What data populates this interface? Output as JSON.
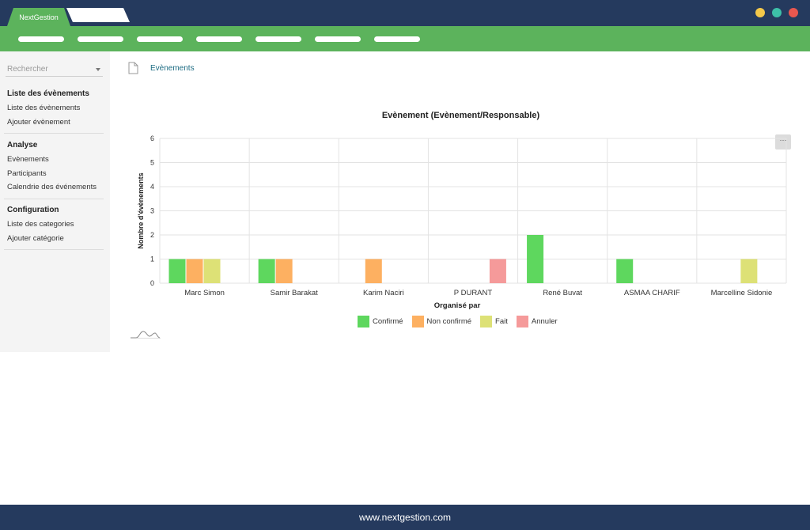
{
  "app": {
    "tab_label": "NextGestion"
  },
  "window_controls": {
    "colors": [
      "#f4c84a",
      "#3dc0a8",
      "#e9574f"
    ]
  },
  "navbar": {
    "pill_count": 7
  },
  "sidebar": {
    "search_placeholder": "Rechercher",
    "sections": [
      {
        "heading": "Liste des évènements",
        "items": [
          "Liste des évènements",
          "Ajouter évènement"
        ]
      },
      {
        "heading": "Analyse",
        "items": [
          "Evènements",
          "Participants",
          "Calendrie des événements"
        ]
      },
      {
        "heading": "Configuration",
        "items": [
          "Liste des categories",
          "Ajouter catégorie"
        ]
      }
    ]
  },
  "breadcrumb": {
    "label": "Evènements",
    "icon": "document-icon"
  },
  "chart_menu": {
    "label": "···"
  },
  "chart_data": {
    "type": "bar",
    "title": "Evènement (Evènement/Responsable)",
    "xlabel": "Organisé par",
    "ylabel": "Nombre d'évènements",
    "ylim": [
      0,
      6
    ],
    "yticks": [
      0,
      1,
      2,
      3,
      4,
      5,
      6
    ],
    "grid": true,
    "legend_position": "bottom",
    "categories": [
      "Marc Simon",
      "Samir Barakat",
      "Karim Naciri",
      "P DURANT",
      "René Buvat",
      "ASMAA CHARIF",
      "Marcelline Sidonie"
    ],
    "series": [
      {
        "name": "Confirmé",
        "color": "#5ed75e",
        "values": [
          1,
          1,
          0,
          0,
          2,
          1,
          0
        ]
      },
      {
        "name": "Non confirmé",
        "color": "#fdb061",
        "values": [
          1,
          1,
          1,
          0,
          0,
          0,
          0
        ]
      },
      {
        "name": "Fait",
        "color": "#dde176",
        "values": [
          1,
          0,
          0,
          0,
          0,
          0,
          1
        ]
      },
      {
        "name": "Annuler",
        "color": "#f59a9a",
        "values": [
          0,
          0,
          0,
          1,
          0,
          0,
          0
        ]
      }
    ]
  },
  "footer": {
    "text": "www.nextgestion.com"
  }
}
